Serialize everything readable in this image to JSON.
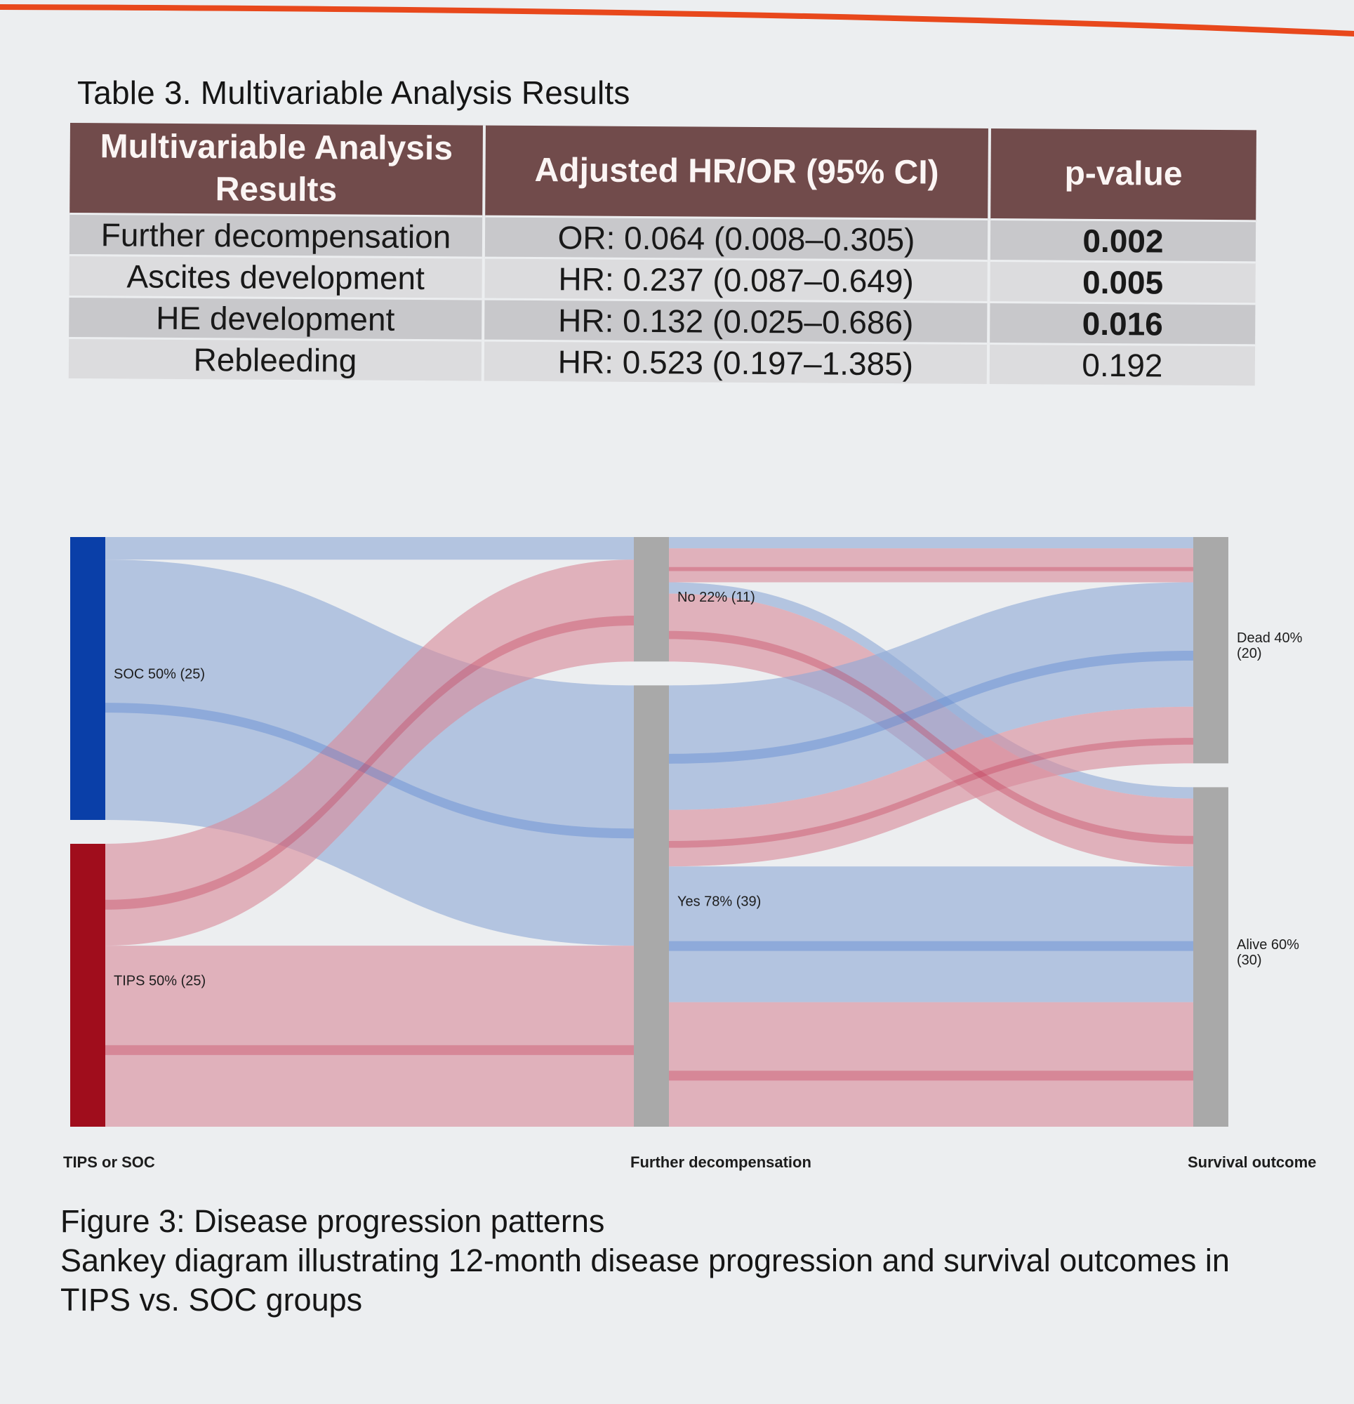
{
  "table": {
    "caption": "Table 3. Multivariable Analysis Results",
    "headers": [
      "Multivariable Analysis Results",
      "Adjusted HR/OR (95% CI)",
      "p-value"
    ],
    "rows": [
      {
        "label": "Further decompensation",
        "estimate": "OR: 0.064 (0.008–0.305)",
        "p": "0.002",
        "significant": true
      },
      {
        "label": "Ascites development",
        "estimate": "HR: 0.237 (0.087–0.649)",
        "p": "0.005",
        "significant": true
      },
      {
        "label": "HE development",
        "estimate": "HR: 0.132 (0.025–0.686)",
        "p": "0.016",
        "significant": true
      },
      {
        "label": "Rebleeding",
        "estimate": "HR: 0.523 (0.197–1.385)",
        "p": "0.192",
        "significant": false
      }
    ]
  },
  "chart_data": {
    "type": "sankey",
    "stages": [
      "TIPS or SOC",
      "Further decompensation",
      "Survival outcome"
    ],
    "nodes": [
      {
        "id": "soc",
        "stage": 0,
        "label": "SOC 50% (25)",
        "value": 25,
        "color": "#0a3fa8"
      },
      {
        "id": "tips",
        "stage": 0,
        "label": "TIPS 50% (25)",
        "value": 25,
        "color": "#a00d1c"
      },
      {
        "id": "no",
        "stage": 1,
        "label": "No 22% (11)",
        "value": 11,
        "color": "#a9a9a9"
      },
      {
        "id": "yes",
        "stage": 1,
        "label": "Yes 78% (39)",
        "value": 39,
        "color": "#a9a9a9"
      },
      {
        "id": "dead",
        "stage": 2,
        "label_lines": [
          "Dead 40%",
          "(20)"
        ],
        "value": 20,
        "color": "#a9a9a9"
      },
      {
        "id": "alive",
        "stage": 2,
        "label_lines": [
          "Alive 60%",
          "(30)"
        ],
        "value": 30,
        "color": "#a9a9a9"
      }
    ],
    "link_colors": {
      "soc": "#8fa9d6",
      "tips": "#d98a9b"
    },
    "highlight_colors": {
      "soc": "#4a7ccf",
      "tips": "#c43a55"
    },
    "links": [
      {
        "source": "soc",
        "target": "no",
        "value": 2,
        "group": "soc"
      },
      {
        "source": "soc",
        "target": "yes",
        "value": 23,
        "group": "soc"
      },
      {
        "source": "tips",
        "target": "no",
        "value": 9,
        "group": "tips"
      },
      {
        "source": "tips",
        "target": "yes",
        "value": 16,
        "group": "tips"
      },
      {
        "source": "no",
        "target": "dead",
        "value": 1,
        "group": "soc"
      },
      {
        "source": "no",
        "target": "dead",
        "value": 3,
        "group": "tips"
      },
      {
        "source": "no",
        "target": "alive",
        "value": 1,
        "group": "soc"
      },
      {
        "source": "no",
        "target": "alive",
        "value": 6,
        "group": "tips"
      },
      {
        "source": "yes",
        "target": "dead",
        "value": 11,
        "group": "soc"
      },
      {
        "source": "yes",
        "target": "dead",
        "value": 5,
        "group": "tips"
      },
      {
        "source": "yes",
        "target": "alive",
        "value": 12,
        "group": "soc"
      },
      {
        "source": "yes",
        "target": "alive",
        "value": 11,
        "group": "tips"
      }
    ]
  },
  "figure": {
    "caption_line1": "Figure 3: Disease progression patterns",
    "caption_line2": "Sankey diagram illustrating 12-month disease progression and survival outcomes in",
    "caption_line3": "TIPS vs. SOC groups"
  },
  "colors": {
    "header_bg": "#714b4b",
    "accent_edge": "#e8481c"
  }
}
